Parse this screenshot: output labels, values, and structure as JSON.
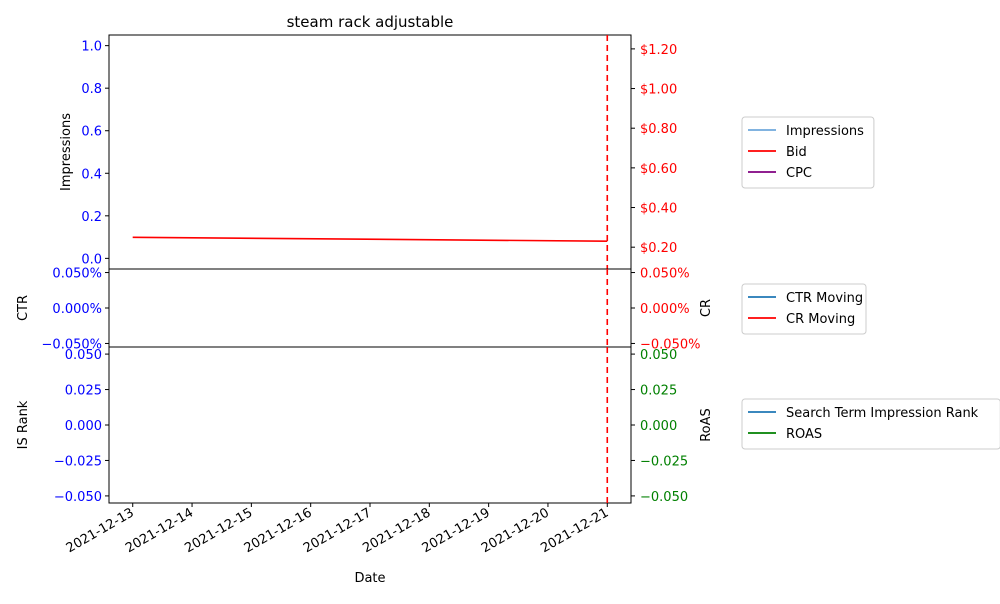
{
  "chart_data": {
    "type": "line",
    "title": "steam rack adjustable",
    "xlabel": "Date",
    "x_ticks": [
      "2021-12-13",
      "2021-12-14",
      "2021-12-15",
      "2021-12-16",
      "2021-12-17",
      "2021-12-18",
      "2021-12-19",
      "2021-12-20",
      "2021-12-21"
    ],
    "x_range": [
      "2021-12-12.6",
      "2021-12-21.4"
    ],
    "marker_date": "2021-12-21",
    "panels": [
      {
        "id": "top",
        "left_axis": {
          "label": "Impressions",
          "color": "#0000ff",
          "ylim": [
            -0.05,
            1.05
          ],
          "ticks": [
            "0.0",
            "0.2",
            "0.4",
            "0.6",
            "0.8",
            "1.0"
          ],
          "tick_values": [
            0,
            0.2,
            0.4,
            0.6,
            0.8,
            1.0
          ]
        },
        "right_axis": {
          "label": "",
          "color": "#ff0000",
          "ylim": [
            0.09,
            1.27
          ],
          "ticks": [
            "$0.20",
            "$0.40",
            "$0.60",
            "$0.80",
            "$1.00",
            "$1.20"
          ],
          "tick_values": [
            0.2,
            0.4,
            0.6,
            0.8,
            1.0,
            1.2
          ]
        },
        "series": [
          {
            "name": "Impressions",
            "axis": "left",
            "color": "#6fa8dc",
            "x": [],
            "values": []
          },
          {
            "name": "Bid",
            "axis": "right",
            "color": "#ff0000",
            "x": [
              "2021-12-13",
              "2021-12-21"
            ],
            "values": [
              0.25,
              0.23
            ]
          },
          {
            "name": "CPC",
            "axis": "right",
            "color": "#800080",
            "x": [],
            "values": []
          }
        ],
        "legend": [
          "Impressions",
          "Bid",
          "CPC"
        ]
      },
      {
        "id": "middle",
        "left_axis": {
          "label": "CTR",
          "color": "#0000ff",
          "ylim": [
            -0.055,
            0.055
          ],
          "ticks": [
            "0.050%",
            "0.000%",
            "−0.050%"
          ],
          "tick_values": [
            0.05,
            0,
            -0.05
          ]
        },
        "right_axis": {
          "label": "CR",
          "color": "#ff0000",
          "ylim": [
            -0.055,
            0.055
          ],
          "ticks": [
            "0.050%",
            "0.000%",
            "−0.050%"
          ],
          "tick_values": [
            0.05,
            0,
            -0.05
          ]
        },
        "series": [
          {
            "name": "CTR Moving",
            "axis": "left",
            "color": "#1f77b4",
            "x": [],
            "values": []
          },
          {
            "name": "CR Moving",
            "axis": "right",
            "color": "#ff0000",
            "x": [],
            "values": []
          }
        ],
        "legend": [
          "CTR Moving",
          "CR Moving"
        ]
      },
      {
        "id": "bottom",
        "left_axis": {
          "label": "IS Rank",
          "color": "#0000ff",
          "ylim": [
            -0.055,
            0.055
          ],
          "ticks": [
            "0.050",
            "0.025",
            "0.000",
            "−0.025",
            "−0.050"
          ],
          "tick_values": [
            0.05,
            0.025,
            0,
            -0.025,
            -0.05
          ]
        },
        "right_axis": {
          "label": "RoAS",
          "color": "#008000",
          "ylim": [
            -0.055,
            0.055
          ],
          "ticks": [
            "0.050",
            "0.025",
            "0.000",
            "−0.025",
            "−0.050"
          ],
          "tick_values": [
            0.05,
            0.025,
            0,
            -0.025,
            -0.05
          ]
        },
        "series": [
          {
            "name": "Search Term Impression Rank",
            "axis": "left",
            "color": "#1f77b4",
            "x": [],
            "values": []
          },
          {
            "name": "ROAS",
            "axis": "right",
            "color": "#008000",
            "x": [],
            "values": []
          }
        ],
        "legend": [
          "Search Term Impression Rank",
          "ROAS"
        ]
      }
    ]
  }
}
